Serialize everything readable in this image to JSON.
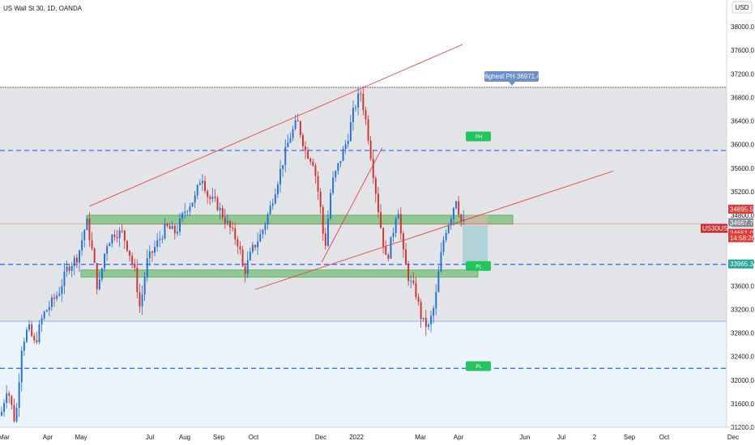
{
  "header": {
    "title": "US Wall St 30, 1D, OANDA"
  },
  "currency_badge": "USD",
  "colors": {
    "up": "#2aa198",
    "down": "#e53935",
    "candle_up": "#1e6fd8",
    "candle_down": "#d32f2f",
    "zone_green": "#4caf50",
    "gray_band": "#e3e4e7",
    "blue_band": "#dbeafc",
    "dashed_blue": "#2962ff",
    "trend_red": "#e53935",
    "marker_green": "#22c55e",
    "projection_teal": "#8fc8cf"
  },
  "chart_data": {
    "type": "candlestick",
    "title": "US Wall St 30, 1D, OANDA",
    "ylim": [
      31200,
      38400
    ],
    "y_ticks": [
      31200,
      31600,
      32000,
      32400,
      32800,
      33200,
      33600,
      34000,
      34400,
      34800,
      35200,
      35600,
      36000,
      36400,
      36800,
      37200,
      37600,
      38000,
      38400
    ],
    "y_tick_labels": [
      "31200.0",
      "31600.0",
      "32000.0",
      "32400.0",
      "32800.0",
      "33200.0",
      "33600.0",
      "34000.0",
      "34400.0",
      "34800.0",
      "35200.0",
      "35600.0",
      "36000.0",
      "36400.0",
      "36800.0",
      "37200.0",
      "37600.0",
      "38000.0",
      "38400.0"
    ],
    "x_tick_labels": [
      "Mar",
      "Apr",
      "May",
      "Jul",
      "Aug",
      "Sep",
      "Oct",
      "Dec",
      "2022",
      "Mar",
      "Apr",
      "Jun",
      "Jul",
      "2",
      "Sep",
      "Oct",
      "Dec"
    ],
    "x_tick_index": [
      5,
      59,
      100,
      185,
      228,
      270,
      313,
      396,
      440,
      519,
      566,
      648,
      693,
      734,
      777,
      820,
      905
    ],
    "price_path": [
      [
        0,
        31400
      ],
      [
        8,
        31900
      ],
      [
        18,
        31250
      ],
      [
        26,
        32600
      ],
      [
        34,
        32900
      ],
      [
        42,
        32600
      ],
      [
        52,
        33100
      ],
      [
        62,
        33300
      ],
      [
        72,
        33500
      ],
      [
        82,
        33900
      ],
      [
        95,
        34100
      ],
      [
        106,
        34700
      ],
      [
        114,
        34100
      ],
      [
        120,
        33500
      ],
      [
        130,
        34300
      ],
      [
        140,
        34500
      ],
      [
        150,
        34500
      ],
      [
        158,
        34200
      ],
      [
        166,
        33800
      ],
      [
        172,
        33200
      ],
      [
        180,
        34000
      ],
      [
        192,
        34300
      ],
      [
        204,
        34600
      ],
      [
        216,
        34500
      ],
      [
        228,
        34900
      ],
      [
        240,
        35100
      ],
      [
        248,
        35500
      ],
      [
        256,
        35100
      ],
      [
        266,
        35000
      ],
      [
        278,
        34700
      ],
      [
        286,
        34500
      ],
      [
        294,
        34300
      ],
      [
        300,
        33800
      ],
      [
        310,
        34200
      ],
      [
        322,
        34500
      ],
      [
        332,
        34900
      ],
      [
        344,
        35500
      ],
      [
        356,
        36100
      ],
      [
        366,
        36400
      ],
      [
        376,
        35900
      ],
      [
        386,
        35700
      ],
      [
        394,
        35000
      ],
      [
        400,
        34200
      ],
      [
        408,
        35300
      ],
      [
        418,
        35700
      ],
      [
        428,
        36100
      ],
      [
        436,
        36600
      ],
      [
        444,
        36900
      ],
      [
        452,
        36300
      ],
      [
        460,
        35500
      ],
      [
        468,
        34700
      ],
      [
        476,
        34000
      ],
      [
        484,
        34500
      ],
      [
        490,
        35000
      ],
      [
        496,
        34200
      ],
      [
        504,
        33700
      ],
      [
        512,
        33500
      ],
      [
        520,
        33000
      ],
      [
        528,
        32900
      ],
      [
        536,
        33300
      ],
      [
        542,
        34000
      ],
      [
        548,
        34500
      ],
      [
        556,
        34800
      ],
      [
        562,
        35100
      ],
      [
        568,
        34700
      ],
      [
        574,
        34650
      ]
    ],
    "horizontal_levels": [
      {
        "price": 36971.4,
        "style": "solid"
      },
      {
        "price": 35900,
        "style": "dashed"
      },
      {
        "price": 33965.3,
        "style": "dashed"
      },
      {
        "price": 32200,
        "style": "dashed"
      },
      {
        "price": 33000,
        "style": "solid-light"
      }
    ],
    "zones": [
      {
        "price_from": 34650,
        "price_to": 34800,
        "x_from": 107,
        "x_to": 633
      },
      {
        "price_from": 33750,
        "price_to": 33870,
        "x_from": 100,
        "x_to": 590
      }
    ],
    "trendlines": [
      {
        "x1": 110,
        "p1": 34950,
        "x2": 571,
        "p2": 37700
      },
      {
        "x1": 315,
        "p1": 33540,
        "x2": 757,
        "p2": 35550
      },
      {
        "x1": 397,
        "p1": 34000,
        "x2": 472,
        "p2": 35950
      }
    ],
    "annotations": {
      "highest_label": "Highest PH 36971.4",
      "price_tags": [
        {
          "label": "34895.5",
          "price": 34895.5,
          "kind": "red"
        },
        {
          "label": "34667.7",
          "price": 34667.7,
          "kind": "gray"
        },
        {
          "label": "US30USD",
          "price": 34570,
          "kind": "red-symbol"
        },
        {
          "label": "34651.0",
          "price": 34490,
          "kind": "red"
        },
        {
          "label": "14:58:28",
          "price": 34410,
          "kind": "red-time"
        },
        {
          "label": "33965.3",
          "price": 33965.3,
          "kind": "teal"
        }
      ],
      "markers": [
        {
          "label": "PH",
          "price": 36000,
          "x": 591
        },
        {
          "label": "PL",
          "price": 33800,
          "x": 591
        },
        {
          "label": "PL",
          "price": 32100,
          "x": 591
        }
      ]
    }
  }
}
